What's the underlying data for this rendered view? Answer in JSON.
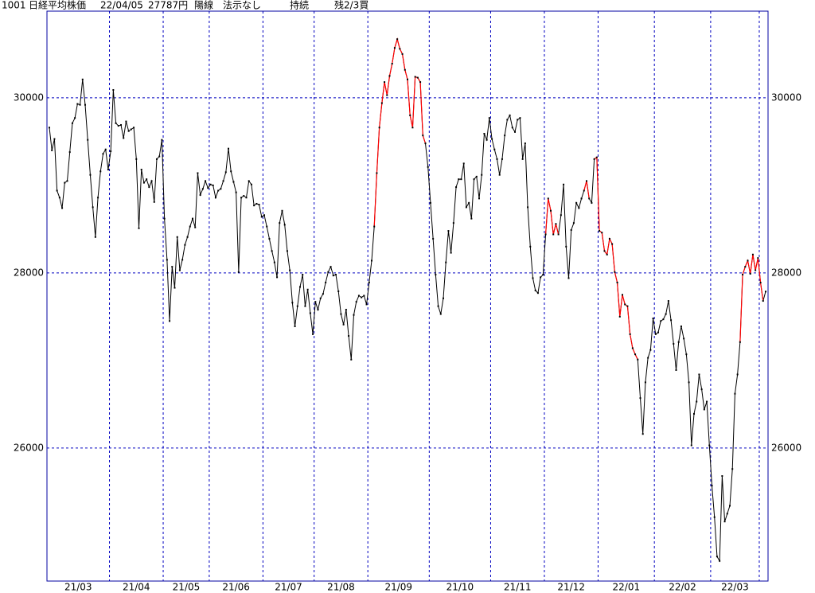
{
  "header": {
    "code": "1001",
    "name": "日経平均株価",
    "date": "22/04/05",
    "price": "27787円",
    "candle": "陽線",
    "note": "法示なし",
    "status": "持続",
    "signal": "残2/3買"
  },
  "chart_data": {
    "type": "line",
    "color": "#000000",
    "dot_color": "#000000",
    "highlight": {
      "color": "#ff0000",
      "ranges": [
        [
          127,
          147
        ],
        [
          194,
          199
        ],
        [
          209,
          211
        ],
        [
          213,
          230
        ],
        [
          270,
          279
        ]
      ]
    },
    "values": [
      29660,
      29400,
      29530,
      28940,
      28860,
      28740,
      29030,
      29050,
      29380,
      29710,
      29770,
      29930,
      29920,
      30210,
      29920,
      29520,
      29120,
      28750,
      28410,
      28860,
      29160,
      29360,
      29410,
      29180,
      29390,
      30090,
      29710,
      29680,
      29690,
      29540,
      29730,
      29620,
      29640,
      29660,
      29300,
      28510,
      29180,
      29030,
      29070,
      28980,
      29050,
      28810,
      29300,
      29330,
      29520,
      28620,
      28150,
      27450,
      28070,
      27830,
      28410,
      28030,
      28150,
      28320,
      28410,
      28530,
      28620,
      28520,
      29140,
      28890,
      28960,
      29050,
      28970,
      29010,
      29000,
      28860,
      28940,
      28960,
      29050,
      29150,
      29420,
      29160,
      29040,
      28920,
      28010,
      28860,
      28880,
      28860,
      29050,
      29010,
      28770,
      28790,
      28780,
      28640,
      28660,
      28530,
      28390,
      28250,
      28120,
      27950,
      28570,
      28710,
      28550,
      28250,
      28030,
      27660,
      27390,
      27620,
      27840,
      27980,
      27620,
      27810,
      27540,
      27300,
      27670,
      27580,
      27710,
      27760,
      27890,
      28010,
      28070,
      27970,
      27980,
      27790,
      27530,
      27410,
      27580,
      27280,
      27010,
      27520,
      27670,
      27740,
      27720,
      27740,
      27640,
      27890,
      28140,
      28530,
      29140,
      29660,
      29940,
      30180,
      30030,
      30250,
      30390,
      30570,
      30670,
      30560,
      30500,
      30320,
      30210,
      29800,
      29660,
      30240,
      30230,
      30180,
      29570,
      29480,
      29210,
      28800,
      28390,
      27980,
      27620,
      27530,
      27710,
      28120,
      28480,
      28230,
      28570,
      28980,
      29070,
      29070,
      29250,
      28750,
      28800,
      28620,
      29070,
      29100,
      28850,
      29120,
      29590,
      29520,
      29770,
      29530,
      29410,
      29300,
      29120,
      29300,
      29570,
      29750,
      29800,
      29660,
      29610,
      29750,
      29770,
      29300,
      29480,
      28750,
      28300,
      27940,
      27800,
      27770,
      27950,
      27980,
      28440,
      28850,
      28710,
      28440,
      28560,
      28440,
      28660,
      29010,
      28300,
      27940,
      28490,
      28570,
      28800,
      28740,
      28850,
      28940,
      29050,
      28850,
      28800,
      29300,
      29320,
      28480,
      28460,
      28250,
      28210,
      28390,
      28330,
      28010,
      27890,
      27500,
      27750,
      27640,
      27620,
      27300,
      27140,
      27070,
      27010,
      26570,
      26160,
      26750,
      27030,
      27120,
      27480,
      27300,
      27320,
      27450,
      27470,
      27530,
      27680,
      27460,
      27190,
      26890,
      27210,
      27390,
      27250,
      27070,
      26750,
      26030,
      26390,
      26530,
      26840,
      26670,
      26440,
      26530,
      26030,
      25570,
      25210,
      24760,
      24710,
      25680,
      25160,
      25250,
      25340,
      25760,
      26620,
      26840,
      27210,
      27980,
      28070,
      28140,
      27990,
      28210,
      28030,
      28170,
      27890,
      27680,
      27787
    ],
    "xticks": [
      {
        "value": 0,
        "label": "21/03"
      },
      {
        "value": 24,
        "label": "21/04"
      },
      {
        "value": 45,
        "label": "21/05"
      },
      {
        "value": 63,
        "label": "21/06"
      },
      {
        "value": 84,
        "label": "21/07"
      },
      {
        "value": 104,
        "label": "21/08"
      },
      {
        "value": 125,
        "label": "21/09"
      },
      {
        "value": 149,
        "label": "21/10"
      },
      {
        "value": 173,
        "label": "21/11"
      },
      {
        "value": 194,
        "label": "21/12"
      },
      {
        "value": 215,
        "label": "22/01"
      },
      {
        "value": 237,
        "label": "22/02"
      },
      {
        "value": 259,
        "label": "22/03"
      },
      {
        "value": 278,
        "label": null
      }
    ],
    "ylim": [
      24480,
      30990
    ],
    "yticks": [
      26000,
      28000,
      30000
    ],
    "grid": true,
    "grid_color": "#0000c0",
    "frame_color": "#0000a0"
  }
}
